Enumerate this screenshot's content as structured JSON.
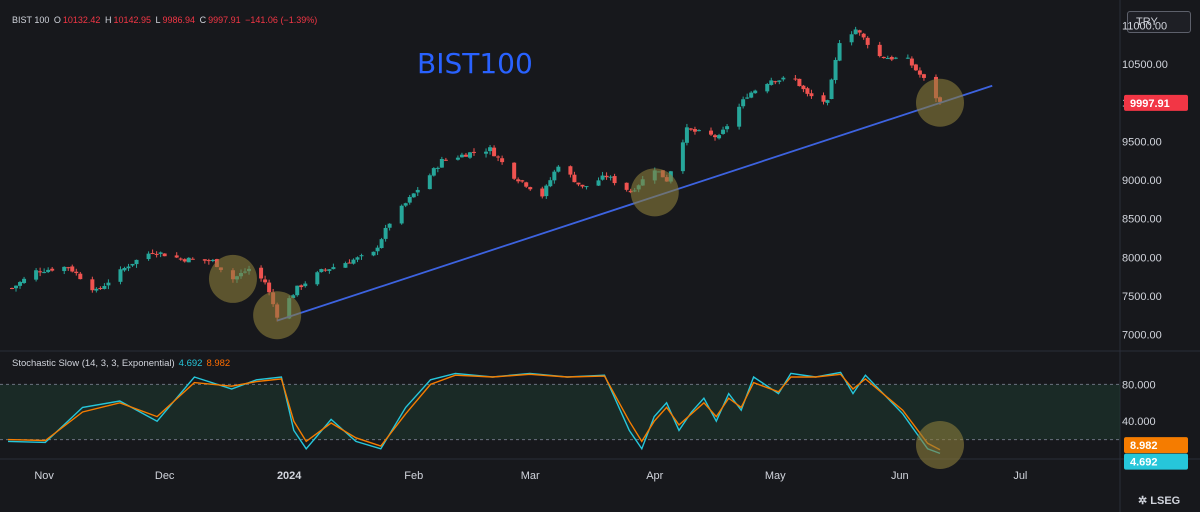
{
  "header": {
    "symbol": "BIST 100",
    "o_label": "O",
    "o_value": "10132.42",
    "h_label": "H",
    "h_value": "10142.95",
    "l_label": "L",
    "l_value": "9986.94",
    "c_label": "C",
    "c_value": "9997.91",
    "change": "−141.06 (−1.39%)"
  },
  "currency_button": "TRY",
  "stoch_header": {
    "label": "Stochastic Slow (14, 3, 3, Exponential)",
    "k": "4.692",
    "d": "8.982"
  },
  "logo": "LSEG",
  "colors": {
    "up": "#26a69a",
    "down": "#ef5350",
    "trend": "#3d63e0",
    "k": "#26c6da",
    "d": "#f57c00",
    "circle": "#8b7d3a"
  },
  "chart_data": [
    {
      "type": "candlestick",
      "title": "BIST100",
      "x_axis": {
        "ticks": [
          "Nov",
          "Dec",
          "2024",
          "Feb",
          "Mar",
          "Apr",
          "May",
          "Jun",
          "Jul"
        ]
      },
      "y_axis": {
        "ticks": [
          "11000.00",
          "10500.00",
          "10000.00",
          "9500.00",
          "9000.00",
          "8500.00",
          "8000.00",
          "7500.00",
          "7000.00"
        ],
        "range": [
          6800,
          11200
        ]
      },
      "last_price": "9997.91",
      "close_path": [
        [
          "2023-10-24",
          7600
        ],
        [
          "2023-10-30",
          7820
        ],
        [
          "2023-11-07",
          7880
        ],
        [
          "2023-11-14",
          7560
        ],
        [
          "2023-11-22",
          7900
        ],
        [
          "2023-11-28",
          8080
        ],
        [
          "2023-12-05",
          7980
        ],
        [
          "2023-12-13",
          7950
        ],
        [
          "2023-12-18",
          7720
        ],
        [
          "2023-12-22",
          7850
        ],
        [
          "2023-12-26",
          7680
        ],
        [
          "2023-12-29",
          7250
        ],
        [
          "2024-01-03",
          7600
        ],
        [
          "2024-01-09",
          7820
        ],
        [
          "2024-01-16",
          7950
        ],
        [
          "2024-01-22",
          8050
        ],
        [
          "2024-01-26",
          8450
        ],
        [
          "2024-02-02",
          8880
        ],
        [
          "2024-02-08",
          9250
        ],
        [
          "2024-02-15",
          9350
        ],
        [
          "2024-02-20",
          9400
        ],
        [
          "2024-02-26",
          9050
        ],
        [
          "2024-03-04",
          8800
        ],
        [
          "2024-03-08",
          9200
        ],
        [
          "2024-03-14",
          8900
        ],
        [
          "2024-03-20",
          9050
        ],
        [
          "2024-03-26",
          8850
        ],
        [
          "2024-04-01",
          9150
        ],
        [
          "2024-04-04",
          9000
        ],
        [
          "2024-04-09",
          9650
        ],
        [
          "2024-04-17",
          9550
        ],
        [
          "2024-04-24",
          10100
        ],
        [
          "2024-04-30",
          10300
        ],
        [
          "2024-05-06",
          10300
        ],
        [
          "2024-05-09",
          10100
        ],
        [
          "2024-05-14",
          10000
        ],
        [
          "2024-05-17",
          10800
        ],
        [
          "2024-05-21",
          10950
        ],
        [
          "2024-05-27",
          10600
        ],
        [
          "2024-06-03",
          10550
        ],
        [
          "2024-06-07",
          10300
        ],
        [
          "2024-06-11",
          9998
        ]
      ],
      "trendline": [
        [
          "2023-12-29",
          7180
        ],
        [
          "2024-06-24",
          10220
        ]
      ],
      "highlight_circles": [
        [
          "2023-12-18",
          7720
        ],
        [
          "2023-12-29",
          7250
        ],
        [
          "2024-04-01",
          8840
        ],
        [
          "2024-06-11",
          10000
        ]
      ]
    },
    {
      "type": "line",
      "title": "Stochastic Slow (14, 3, 3, Exponential)",
      "y_axis": {
        "ticks": [
          "80.000",
          "40.000"
        ],
        "range": [
          0,
          100
        ]
      },
      "series": [
        {
          "name": "%K",
          "last": "4.692",
          "values": [
            [
              0,
              18
            ],
            [
              6,
              17
            ],
            [
              12,
              55
            ],
            [
              18,
              62
            ],
            [
              24,
              40
            ],
            [
              30,
              88
            ],
            [
              36,
              75
            ],
            [
              40,
              85
            ],
            [
              44,
              88
            ],
            [
              46,
              30
            ],
            [
              48,
              10
            ],
            [
              52,
              42
            ],
            [
              56,
              18
            ],
            [
              60,
              10
            ],
            [
              64,
              55
            ],
            [
              68,
              85
            ],
            [
              72,
              92
            ],
            [
              78,
              88
            ],
            [
              84,
              92
            ],
            [
              90,
              88
            ],
            [
              96,
              90
            ],
            [
              100,
              30
            ],
            [
              102,
              10
            ],
            [
              104,
              45
            ],
            [
              106,
              60
            ],
            [
              108,
              30
            ],
            [
              110,
              50
            ],
            [
              112,
              65
            ],
            [
              114,
              40
            ],
            [
              116,
              70
            ],
            [
              118,
              52
            ],
            [
              120,
              88
            ],
            [
              124,
              70
            ],
            [
              126,
              92
            ],
            [
              130,
              88
            ],
            [
              134,
              93
            ],
            [
              136,
              70
            ],
            [
              138,
              90
            ],
            [
              144,
              48
            ],
            [
              148,
              10
            ],
            [
              150,
              5
            ]
          ]
        },
        {
          "name": "%D",
          "last": "8.982",
          "values": [
            [
              0,
              20
            ],
            [
              6,
              19
            ],
            [
              12,
              50
            ],
            [
              18,
              60
            ],
            [
              24,
              45
            ],
            [
              30,
              82
            ],
            [
              36,
              78
            ],
            [
              40,
              83
            ],
            [
              44,
              86
            ],
            [
              46,
              40
            ],
            [
              48,
              18
            ],
            [
              52,
              38
            ],
            [
              56,
              22
            ],
            [
              60,
              13
            ],
            [
              64,
              48
            ],
            [
              68,
              80
            ],
            [
              72,
              90
            ],
            [
              78,
              88
            ],
            [
              84,
              91
            ],
            [
              90,
              88
            ],
            [
              96,
              89
            ],
            [
              100,
              40
            ],
            [
              102,
              18
            ],
            [
              104,
              40
            ],
            [
              106,
              55
            ],
            [
              108,
              36
            ],
            [
              110,
              48
            ],
            [
              112,
              60
            ],
            [
              114,
              45
            ],
            [
              116,
              65
            ],
            [
              118,
              55
            ],
            [
              120,
              82
            ],
            [
              124,
              72
            ],
            [
              126,
              88
            ],
            [
              130,
              88
            ],
            [
              134,
              91
            ],
            [
              136,
              75
            ],
            [
              138,
              86
            ],
            [
              144,
              52
            ],
            [
              148,
              16
            ],
            [
              150,
              9
            ]
          ]
        }
      ],
      "highlight_circles": [
        [
          150,
          12
        ]
      ]
    }
  ]
}
